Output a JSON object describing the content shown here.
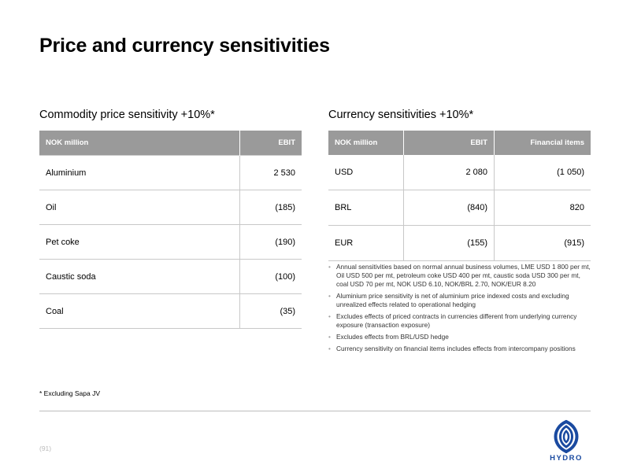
{
  "title": "Price and currency sensitivities",
  "commodity": {
    "title": "Commodity price sensitivity +10%*",
    "headers": [
      "NOK million",
      "EBIT"
    ],
    "rows": [
      {
        "label": "Aluminium",
        "ebit": "2 530"
      },
      {
        "label": "Oil",
        "ebit": "(185)"
      },
      {
        "label": "Pet coke",
        "ebit": "(190)"
      },
      {
        "label": "Caustic soda",
        "ebit": "(100)"
      },
      {
        "label": "Coal",
        "ebit": "(35)"
      }
    ]
  },
  "currency": {
    "title": "Currency sensitivities +10%*",
    "headers": [
      "NOK million",
      "EBIT",
      "Financial items"
    ],
    "rows": [
      {
        "label": "USD",
        "ebit": "2 080",
        "financial": "(1 050)"
      },
      {
        "label": "BRL",
        "ebit": "(840)",
        "financial": "820"
      },
      {
        "label": "EUR",
        "ebit": "(155)",
        "financial": "(915)"
      }
    ]
  },
  "notes": [
    "Annual sensitivities based on normal annual business volumes, LME USD 1 800 per mt, Oil USD 500 per mt, petroleum coke USD 400 per mt, caustic soda USD 300 per mt, coal USD 70 per mt, NOK USD 6.10, NOK/BRL 2.70, NOK/EUR 8.20",
    "Aluminium price sensitivity is net of aluminium price indexed costs and excluding unrealized effects related to operational hedging",
    "Excludes effects of priced contracts in currencies different from underlying currency exposure (transaction exposure)",
    "Excludes effects from BRL/USD hedge",
    "Currency sensitivity on financial items includes effects from intercompany positions"
  ],
  "footnote": "* Excluding Sapa JV",
  "page_number": "(91)",
  "logo": {
    "icon": "hydro-logo-icon",
    "text": "HYDRO",
    "color": "#1a4aa0"
  }
}
